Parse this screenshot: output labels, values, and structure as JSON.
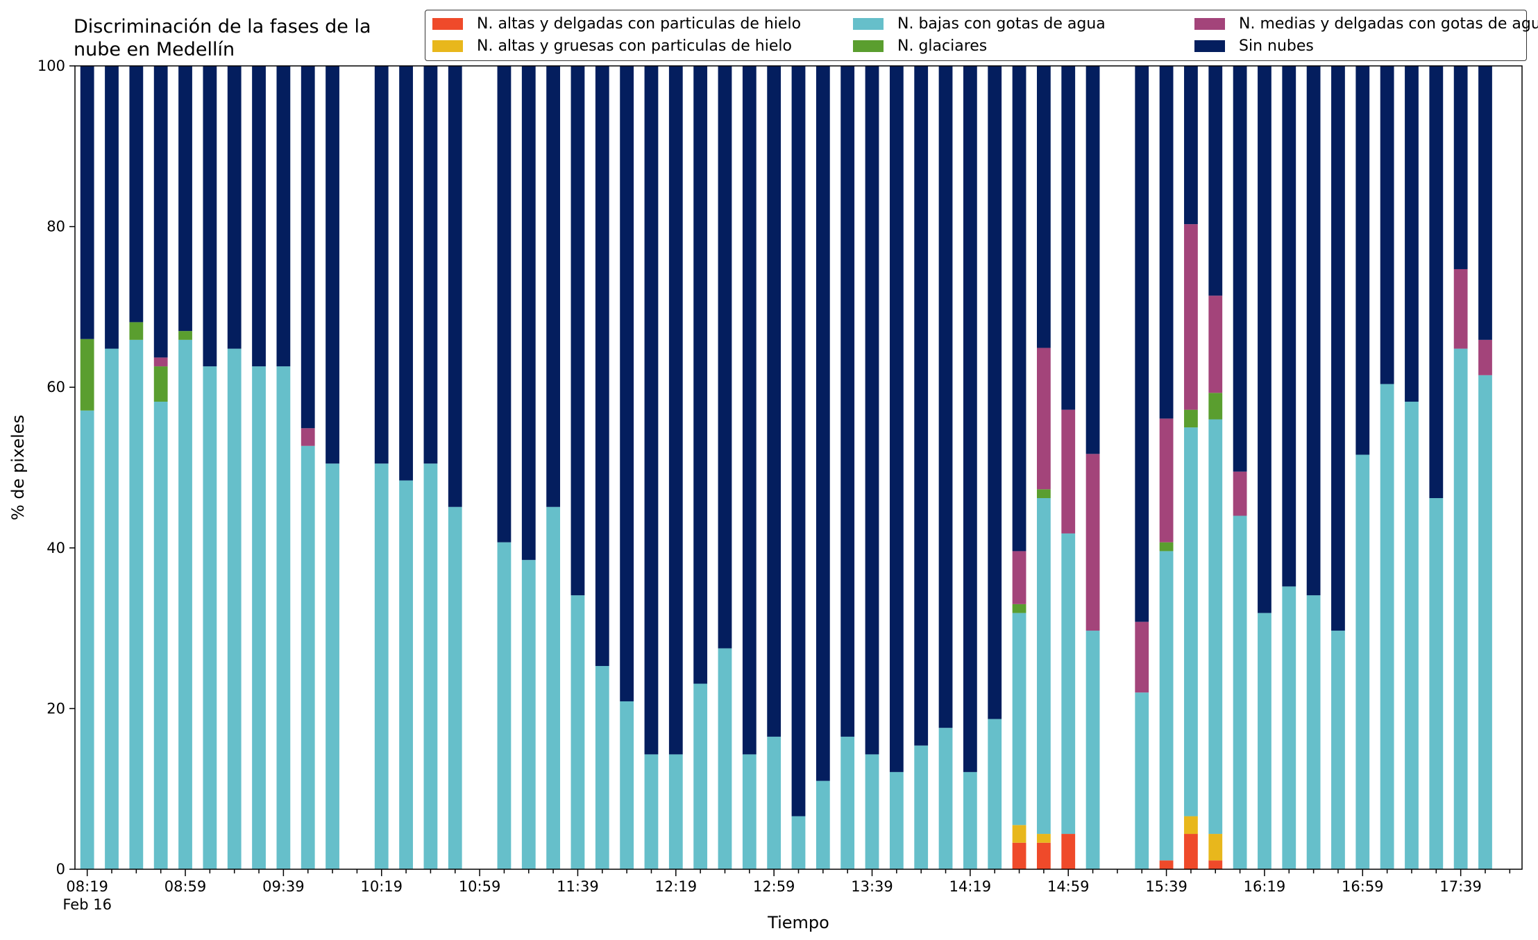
{
  "chart_data": {
    "type": "bar",
    "stacked": true,
    "title": "Discriminación de la fases de la\nnube en Medellín",
    "xlabel": "Tiempo",
    "ylabel": "% de pixeles",
    "ylim": [
      0,
      100
    ],
    "yticks": [
      0,
      20,
      40,
      60,
      80,
      100
    ],
    "xtick_labels": [
      "08:19",
      "08:59",
      "09:39",
      "10:19",
      "10:59",
      "11:39",
      "12:19",
      "12:59",
      "13:39",
      "14:19",
      "14:59",
      "15:39",
      "16:19",
      "16:59",
      "17:39"
    ],
    "x_date_label": "Feb 16",
    "legend_position": "top-right",
    "slots": 59,
    "bars": [
      {
        "slot": 0,
        "vals": [
          0,
          0,
          57.1,
          8.9,
          0,
          34
        ]
      },
      {
        "slot": 1,
        "vals": [
          0,
          0,
          64.8,
          0,
          0,
          35.2
        ]
      },
      {
        "slot": 2,
        "vals": [
          0,
          0,
          65.9,
          2.2,
          0,
          31.9
        ]
      },
      {
        "slot": 3,
        "vals": [
          0,
          0,
          58.2,
          4.4,
          1.1,
          36.3
        ]
      },
      {
        "slot": 4,
        "vals": [
          0,
          0,
          65.9,
          1.1,
          0,
          33
        ]
      },
      {
        "slot": 5,
        "vals": [
          0,
          0,
          62.6,
          0,
          0,
          37.4
        ]
      },
      {
        "slot": 6,
        "vals": [
          0,
          0,
          64.8,
          0,
          0,
          35.2
        ]
      },
      {
        "slot": 7,
        "vals": [
          0,
          0,
          62.6,
          0,
          0,
          37.4
        ]
      },
      {
        "slot": 8,
        "vals": [
          0,
          0,
          62.6,
          0,
          0,
          37.4
        ]
      },
      {
        "slot": 9,
        "vals": [
          0,
          0,
          52.7,
          0,
          2.2,
          45.1
        ]
      },
      {
        "slot": 10,
        "vals": [
          0,
          0,
          50.5,
          0,
          0,
          49.5
        ]
      },
      {
        "slot": 12,
        "vals": [
          0,
          0,
          50.5,
          0,
          0,
          49.5
        ]
      },
      {
        "slot": 13,
        "vals": [
          0,
          0,
          48.4,
          0,
          0,
          51.6
        ]
      },
      {
        "slot": 14,
        "vals": [
          0,
          0,
          50.5,
          0,
          0,
          49.5
        ]
      },
      {
        "slot": 15,
        "vals": [
          0,
          0,
          45.1,
          0,
          0,
          54.9
        ]
      },
      {
        "slot": 17,
        "vals": [
          0,
          0,
          40.7,
          0,
          0,
          59.3
        ]
      },
      {
        "slot": 18,
        "vals": [
          0,
          0,
          38.5,
          0,
          0,
          61.5
        ]
      },
      {
        "slot": 19,
        "vals": [
          0,
          0,
          45.1,
          0,
          0,
          54.9
        ]
      },
      {
        "slot": 20,
        "vals": [
          0,
          0,
          34.1,
          0,
          0,
          65.9
        ]
      },
      {
        "slot": 21,
        "vals": [
          0,
          0,
          25.3,
          0,
          0,
          74.7
        ]
      },
      {
        "slot": 22,
        "vals": [
          0,
          0,
          20.9,
          0,
          0,
          79.1
        ]
      },
      {
        "slot": 23,
        "vals": [
          0,
          0,
          14.3,
          0,
          0,
          85.7
        ]
      },
      {
        "slot": 24,
        "vals": [
          0,
          0,
          14.3,
          0,
          0,
          85.7
        ]
      },
      {
        "slot": 25,
        "vals": [
          0,
          0,
          23.1,
          0,
          0,
          76.9
        ]
      },
      {
        "slot": 26,
        "vals": [
          0,
          0,
          27.5,
          0,
          0,
          72.5
        ]
      },
      {
        "slot": 27,
        "vals": [
          0,
          0,
          14.3,
          0,
          0,
          85.7
        ]
      },
      {
        "slot": 28,
        "vals": [
          0,
          0,
          16.5,
          0,
          0,
          83.5
        ]
      },
      {
        "slot": 29,
        "vals": [
          0,
          0,
          6.6,
          0,
          0,
          93.4
        ]
      },
      {
        "slot": 30,
        "vals": [
          0,
          0,
          11,
          0,
          0,
          89
        ]
      },
      {
        "slot": 31,
        "vals": [
          0,
          0,
          16.5,
          0,
          0,
          83.5
        ]
      },
      {
        "slot": 32,
        "vals": [
          0,
          0,
          14.3,
          0,
          0,
          85.7
        ]
      },
      {
        "slot": 33,
        "vals": [
          0,
          0,
          12.1,
          0,
          0,
          87.9
        ]
      },
      {
        "slot": 34,
        "vals": [
          0,
          0,
          15.4,
          0,
          0,
          84.6
        ]
      },
      {
        "slot": 35,
        "vals": [
          0,
          0,
          17.6,
          0,
          0,
          82.4
        ]
      },
      {
        "slot": 36,
        "vals": [
          0,
          0,
          12.1,
          0,
          0,
          87.9
        ]
      },
      {
        "slot": 37,
        "vals": [
          0,
          0,
          18.7,
          0,
          0,
          81.3
        ]
      },
      {
        "slot": 38,
        "vals": [
          3.3,
          2.2,
          26.4,
          1.1,
          6.6,
          60.4
        ]
      },
      {
        "slot": 39,
        "vals": [
          3.3,
          1.1,
          41.8,
          1.1,
          17.6,
          35.1
        ]
      },
      {
        "slot": 40,
        "vals": [
          4.4,
          0,
          37.4,
          0,
          15.4,
          42.8
        ]
      },
      {
        "slot": 41,
        "vals": [
          0,
          0,
          29.7,
          0,
          22,
          48.3
        ]
      },
      {
        "slot": 43,
        "vals": [
          0,
          0,
          22,
          0,
          8.8,
          69.2
        ]
      },
      {
        "slot": 44,
        "vals": [
          1.1,
          0,
          38.5,
          1.1,
          15.4,
          43.9
        ]
      },
      {
        "slot": 45,
        "vals": [
          4.4,
          2.2,
          48.4,
          2.2,
          23.1,
          19.7
        ]
      },
      {
        "slot": 46,
        "vals": [
          1.1,
          3.3,
          51.6,
          3.3,
          12.1,
          28.6
        ]
      },
      {
        "slot": 47,
        "vals": [
          0,
          0,
          44,
          0,
          5.5,
          50.5
        ]
      },
      {
        "slot": 48,
        "vals": [
          0,
          0,
          31.9,
          0,
          0,
          68.1
        ]
      },
      {
        "slot": 49,
        "vals": [
          0,
          0,
          35.2,
          0,
          0,
          64.8
        ]
      },
      {
        "slot": 50,
        "vals": [
          0,
          0,
          34.1,
          0,
          0,
          65.9
        ]
      },
      {
        "slot": 51,
        "vals": [
          0,
          0,
          29.7,
          0,
          0,
          70.3
        ]
      },
      {
        "slot": 52,
        "vals": [
          0,
          0,
          51.6,
          0,
          0,
          48.4
        ]
      },
      {
        "slot": 53,
        "vals": [
          0,
          0,
          60.4,
          0,
          0,
          39.6
        ]
      },
      {
        "slot": 54,
        "vals": [
          0,
          0,
          58.2,
          0,
          0,
          41.8
        ]
      },
      {
        "slot": 55,
        "vals": [
          0,
          0,
          46.2,
          0,
          0,
          53.8
        ]
      },
      {
        "slot": 56,
        "vals": [
          0,
          0,
          64.8,
          0,
          9.9,
          25.3
        ]
      },
      {
        "slot": 57,
        "vals": [
          0,
          0,
          61.5,
          0,
          4.4,
          34.1
        ]
      }
    ],
    "series": [
      {
        "name": "N. altas y delgadas con particulas de hielo",
        "color": "#ef4a2a"
      },
      {
        "name": "N. altas y gruesas con particulas de hielo",
        "color": "#e8b71c"
      },
      {
        "name": "N. bajas con gotas de agua",
        "color": "#66bfca"
      },
      {
        "name": "N. glaciares",
        "color": "#5a9e2f"
      },
      {
        "name": "N. medias y delgadas con gotas de agua",
        "color": "#a3447a"
      },
      {
        "name": "Sin nubes",
        "color": "#041e5e"
      }
    ]
  }
}
